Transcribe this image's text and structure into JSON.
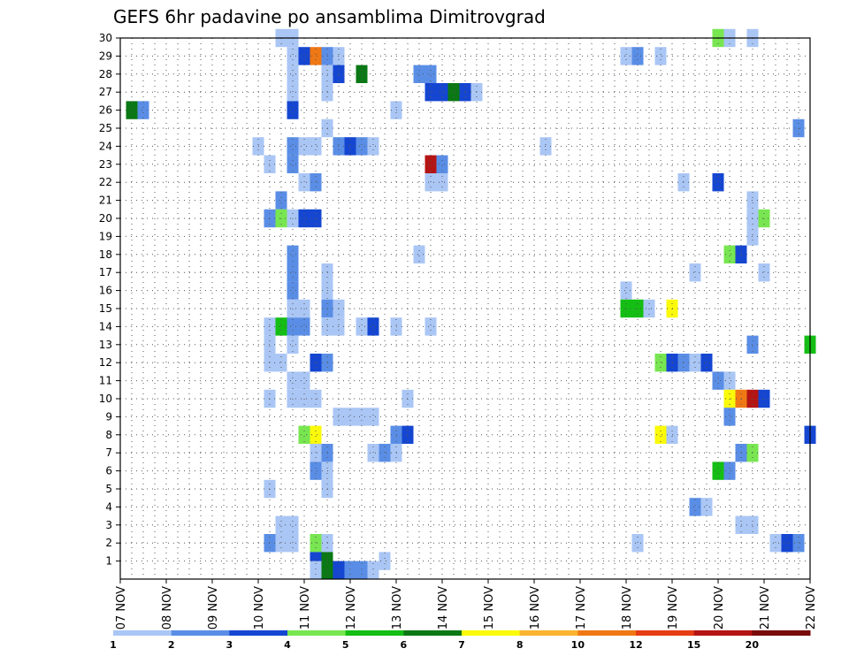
{
  "chart_data": {
    "type": "heatmap",
    "title": "GEFS 6hr padavine po ansamblima Dimitrovgrad",
    "x_tick_labels": [
      "07 NOV",
      "08 NOV",
      "09 NOV",
      "10 NOV",
      "11 NOV",
      "12 NOV",
      "13 NOV",
      "14 NOV",
      "15 NOV",
      "16 NOV",
      "17 NOV",
      "18 NOV",
      "19 NOV",
      "20 NOV",
      "21 NOV",
      "22 NOV"
    ],
    "y_tick_labels": [
      "1",
      "2",
      "3",
      "4",
      "5",
      "6",
      "7",
      "8",
      "9",
      "10",
      "11",
      "12",
      "13",
      "14",
      "15",
      "16",
      "17",
      "18",
      "19",
      "20",
      "21",
      "22",
      "23",
      "24",
      "25",
      "26",
      "27",
      "28",
      "29",
      "30"
    ],
    "x_range_hours": [
      0,
      360
    ],
    "y_range": [
      0,
      30
    ],
    "bin_hours": 6,
    "colorbar": {
      "levels": [
        "1",
        "2",
        "3",
        "4",
        "5",
        "6",
        "7",
        "8",
        "10",
        "12",
        "15",
        "20"
      ],
      "colors": [
        "#aac6f5",
        "#5a8ee6",
        "#1446d2",
        "#78e650",
        "#14be14",
        "#0a7814",
        "#fafa0a",
        "#fab432",
        "#f07814",
        "#e63c14",
        "#b41414",
        "#780a0a"
      ]
    },
    "cells": [
      {
        "m": 30,
        "t": 84,
        "c": 1
      },
      {
        "m": 30,
        "t": 90,
        "c": 1
      },
      {
        "m": 30,
        "t": 312,
        "c": 4
      },
      {
        "m": 30,
        "t": 318,
        "c": 1
      },
      {
        "m": 30,
        "t": 330,
        "c": 1
      },
      {
        "m": 29,
        "t": 90,
        "c": 1
      },
      {
        "m": 29,
        "t": 96,
        "c": 3
      },
      {
        "m": 29,
        "t": 102,
        "c": 9
      },
      {
        "m": 29,
        "t": 108,
        "c": 2
      },
      {
        "m": 29,
        "t": 114,
        "c": 1
      },
      {
        "m": 29,
        "t": 264,
        "c": 1
      },
      {
        "m": 29,
        "t": 270,
        "c": 2
      },
      {
        "m": 29,
        "t": 282,
        "c": 1
      },
      {
        "m": 28,
        "t": 90,
        "c": 1
      },
      {
        "m": 28,
        "t": 108,
        "c": 1
      },
      {
        "m": 28,
        "t": 114,
        "c": 3
      },
      {
        "m": 28,
        "t": 126,
        "c": 6
      },
      {
        "m": 28,
        "t": 156,
        "c": 2
      },
      {
        "m": 28,
        "t": 162,
        "c": 2
      },
      {
        "m": 27,
        "t": 90,
        "c": 1
      },
      {
        "m": 27,
        "t": 108,
        "c": 1
      },
      {
        "m": 27,
        "t": 162,
        "c": 3
      },
      {
        "m": 27,
        "t": 168,
        "c": 3
      },
      {
        "m": 27,
        "t": 174,
        "c": 6
      },
      {
        "m": 27,
        "t": 180,
        "c": 3
      },
      {
        "m": 27,
        "t": 186,
        "c": 1
      },
      {
        "m": 26,
        "t": 6,
        "c": 6
      },
      {
        "m": 26,
        "t": 12,
        "c": 2
      },
      {
        "m": 26,
        "t": 90,
        "c": 3
      },
      {
        "m": 26,
        "t": 144,
        "c": 1
      },
      {
        "m": 25,
        "t": 108,
        "c": 1
      },
      {
        "m": 25,
        "t": 354,
        "c": 2
      },
      {
        "m": 24,
        "t": 72,
        "c": 1
      },
      {
        "m": 24,
        "t": 90,
        "c": 2
      },
      {
        "m": 24,
        "t": 96,
        "c": 1
      },
      {
        "m": 24,
        "t": 102,
        "c": 1
      },
      {
        "m": 24,
        "t": 114,
        "c": 2
      },
      {
        "m": 24,
        "t": 120,
        "c": 3
      },
      {
        "m": 24,
        "t": 126,
        "c": 2
      },
      {
        "m": 24,
        "t": 132,
        "c": 1
      },
      {
        "m": 24,
        "t": 222,
        "c": 1
      },
      {
        "m": 23,
        "t": 78,
        "c": 1
      },
      {
        "m": 23,
        "t": 90,
        "c": 2
      },
      {
        "m": 23,
        "t": 162,
        "c": 11
      },
      {
        "m": 23,
        "t": 168,
        "c": 2
      },
      {
        "m": 22,
        "t": 96,
        "c": 1
      },
      {
        "m": 22,
        "t": 102,
        "c": 2
      },
      {
        "m": 22,
        "t": 162,
        "c": 1
      },
      {
        "m": 22,
        "t": 168,
        "c": 1
      },
      {
        "m": 22,
        "t": 294,
        "c": 1
      },
      {
        "m": 22,
        "t": 312,
        "c": 3
      },
      {
        "m": 21,
        "t": 84,
        "c": 2
      },
      {
        "m": 21,
        "t": 330,
        "c": 1
      },
      {
        "m": 20,
        "t": 78,
        "c": 2
      },
      {
        "m": 20,
        "t": 84,
        "c": 4
      },
      {
        "m": 20,
        "t": 90,
        "c": 1
      },
      {
        "m": 20,
        "t": 96,
        "c": 3
      },
      {
        "m": 20,
        "t": 102,
        "c": 3
      },
      {
        "m": 20,
        "t": 330,
        "c": 1
      },
      {
        "m": 20,
        "t": 336,
        "c": 4
      },
      {
        "m": 19,
        "t": 330,
        "c": 1
      },
      {
        "m": 18,
        "t": 90,
        "c": 2
      },
      {
        "m": 18,
        "t": 156,
        "c": 1
      },
      {
        "m": 18,
        "t": 318,
        "c": 4
      },
      {
        "m": 18,
        "t": 324,
        "c": 3
      },
      {
        "m": 17,
        "t": 90,
        "c": 2
      },
      {
        "m": 17,
        "t": 108,
        "c": 1
      },
      {
        "m": 17,
        "t": 300,
        "c": 1
      },
      {
        "m": 17,
        "t": 336,
        "c": 1
      },
      {
        "m": 16,
        "t": 90,
        "c": 2
      },
      {
        "m": 16,
        "t": 108,
        "c": 1
      },
      {
        "m": 16,
        "t": 264,
        "c": 1
      },
      {
        "m": 15,
        "t": 90,
        "c": 1
      },
      {
        "m": 15,
        "t": 96,
        "c": 1
      },
      {
        "m": 15,
        "t": 108,
        "c": 2
      },
      {
        "m": 15,
        "t": 114,
        "c": 1
      },
      {
        "m": 15,
        "t": 264,
        "c": 5
      },
      {
        "m": 15,
        "t": 270,
        "c": 5
      },
      {
        "m": 15,
        "t": 276,
        "c": 1
      },
      {
        "m": 15,
        "t": 288,
        "c": 7
      },
      {
        "m": 14,
        "t": 78,
        "c": 1
      },
      {
        "m": 14,
        "t": 84,
        "c": 5
      },
      {
        "m": 14,
        "t": 90,
        "c": 2
      },
      {
        "m": 14,
        "t": 96,
        "c": 2
      },
      {
        "m": 14,
        "t": 108,
        "c": 1
      },
      {
        "m": 14,
        "t": 114,
        "c": 1
      },
      {
        "m": 14,
        "t": 126,
        "c": 1
      },
      {
        "m": 14,
        "t": 132,
        "c": 3
      },
      {
        "m": 14,
        "t": 144,
        "c": 1
      },
      {
        "m": 14,
        "t": 162,
        "c": 1
      },
      {
        "m": 13,
        "t": 78,
        "c": 1
      },
      {
        "m": 13,
        "t": 90,
        "c": 1
      },
      {
        "m": 13,
        "t": 330,
        "c": 2
      },
      {
        "m": 13,
        "t": 360,
        "c": 5
      },
      {
        "m": 12,
        "t": 78,
        "c": 1
      },
      {
        "m": 12,
        "t": 84,
        "c": 1
      },
      {
        "m": 12,
        "t": 102,
        "c": 3
      },
      {
        "m": 12,
        "t": 108,
        "c": 2
      },
      {
        "m": 12,
        "t": 282,
        "c": 4
      },
      {
        "m": 12,
        "t": 288,
        "c": 3
      },
      {
        "m": 12,
        "t": 294,
        "c": 2
      },
      {
        "m": 12,
        "t": 300,
        "c": 1
      },
      {
        "m": 12,
        "t": 306,
        "c": 3
      },
      {
        "m": 11,
        "t": 90,
        "c": 1
      },
      {
        "m": 11,
        "t": 96,
        "c": 1
      },
      {
        "m": 11,
        "t": 312,
        "c": 2
      },
      {
        "m": 11,
        "t": 318,
        "c": 1
      },
      {
        "m": 10,
        "t": 78,
        "c": 1
      },
      {
        "m": 10,
        "t": 90,
        "c": 1
      },
      {
        "m": 10,
        "t": 96,
        "c": 1
      },
      {
        "m": 10,
        "t": 102,
        "c": 1
      },
      {
        "m": 10,
        "t": 150,
        "c": 1
      },
      {
        "m": 10,
        "t": 318,
        "c": 7
      },
      {
        "m": 10,
        "t": 324,
        "c": 9
      },
      {
        "m": 10,
        "t": 330,
        "c": 11
      },
      {
        "m": 10,
        "t": 336,
        "c": 3
      },
      {
        "m": 9,
        "t": 114,
        "c": 1
      },
      {
        "m": 9,
        "t": 120,
        "c": 1
      },
      {
        "m": 9,
        "t": 126,
        "c": 1
      },
      {
        "m": 9,
        "t": 132,
        "c": 1
      },
      {
        "m": 9,
        "t": 318,
        "c": 2
      },
      {
        "m": 8,
        "t": 96,
        "c": 4
      },
      {
        "m": 8,
        "t": 102,
        "c": 7
      },
      {
        "m": 8,
        "t": 144,
        "c": 2
      },
      {
        "m": 8,
        "t": 150,
        "c": 3
      },
      {
        "m": 8,
        "t": 282,
        "c": 7
      },
      {
        "m": 8,
        "t": 288,
        "c": 1
      },
      {
        "m": 8,
        "t": 360,
        "c": 3
      },
      {
        "m": 7,
        "t": 102,
        "c": 1
      },
      {
        "m": 7,
        "t": 108,
        "c": 2
      },
      {
        "m": 7,
        "t": 132,
        "c": 1
      },
      {
        "m": 7,
        "t": 138,
        "c": 2
      },
      {
        "m": 7,
        "t": 144,
        "c": 1
      },
      {
        "m": 7,
        "t": 324,
        "c": 2
      },
      {
        "m": 7,
        "t": 330,
        "c": 4
      },
      {
        "m": 6,
        "t": 102,
        "c": 2
      },
      {
        "m": 6,
        "t": 108,
        "c": 1
      },
      {
        "m": 6,
        "t": 312,
        "c": 5
      },
      {
        "m": 6,
        "t": 318,
        "c": 2
      },
      {
        "m": 5,
        "t": 78,
        "c": 1
      },
      {
        "m": 5,
        "t": 108,
        "c": 1
      },
      {
        "m": 4,
        "t": 300,
        "c": 2
      },
      {
        "m": 4,
        "t": 306,
        "c": 1
      },
      {
        "m": 3,
        "t": 84,
        "c": 1
      },
      {
        "m": 3,
        "t": 90,
        "c": 1
      },
      {
        "m": 3,
        "t": 324,
        "c": 1
      },
      {
        "m": 3,
        "t": 330,
        "c": 1
      },
      {
        "m": 2,
        "t": 78,
        "c": 2
      },
      {
        "m": 2,
        "t": 84,
        "c": 1
      },
      {
        "m": 2,
        "t": 90,
        "c": 1
      },
      {
        "m": 2,
        "t": 102,
        "c": 4
      },
      {
        "m": 2,
        "t": 108,
        "c": 1
      },
      {
        "m": 2,
        "t": 270,
        "c": 1
      },
      {
        "m": 2,
        "t": 342,
        "c": 1
      },
      {
        "m": 2,
        "t": 348,
        "c": 3
      },
      {
        "m": 2,
        "t": 354,
        "c": 2
      },
      {
        "m": 1,
        "t": 102,
        "c": 3
      },
      {
        "m": 1,
        "t": 108,
        "c": 6
      },
      {
        "m": 1,
        "t": 138,
        "c": 1
      },
      {
        "m": 0.5,
        "t": 102,
        "c": 1
      },
      {
        "m": 0.5,
        "t": 108,
        "c": 6
      },
      {
        "m": 0.5,
        "t": 114,
        "c": 3
      },
      {
        "m": 0.5,
        "t": 120,
        "c": 2
      },
      {
        "m": 0.5,
        "t": 126,
        "c": 2
      },
      {
        "m": 0.5,
        "t": 132,
        "c": 1
      }
    ]
  }
}
